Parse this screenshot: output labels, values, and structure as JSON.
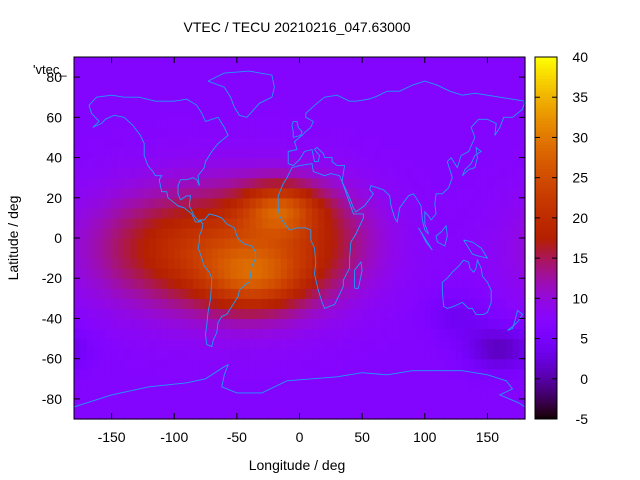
{
  "chart_data": {
    "type": "heatmap",
    "title": "VTEC / TECU 20210216_047.63000",
    "xlabel": "Longitude / deg",
    "ylabel": "Latitude / deg",
    "legend_label": "'vtec_",
    "xlim": [
      -180,
      180
    ],
    "ylim": [
      -90,
      90
    ],
    "x_ticks": [
      -150,
      -100,
      -50,
      0,
      50,
      100,
      150
    ],
    "y_ticks": [
      -80,
      -60,
      -40,
      -20,
      0,
      20,
      40,
      60,
      80
    ],
    "colorbar": {
      "range": [
        -5,
        40
      ],
      "ticks": [
        -5,
        0,
        5,
        10,
        15,
        20,
        25,
        30,
        35,
        40
      ],
      "palette": "gnuplot-black-purple-red-orange-yellow"
    },
    "background_value": 7,
    "features": [
      {
        "name": "equatorial-anomaly-west",
        "lon": -45,
        "lat": -5,
        "amplitude": 13,
        "sigma_lon": 55,
        "sigma_lat": 22
      },
      {
        "name": "south-america-crest",
        "lon": -35,
        "lat": -20,
        "amplitude": 10,
        "sigma_lon": 30,
        "sigma_lat": 12
      },
      {
        "name": "atlantic-crest",
        "lon": -15,
        "lat": 15,
        "amplitude": 12,
        "sigma_lon": 22,
        "sigma_lat": 9
      },
      {
        "name": "pacific-tail",
        "lon": -120,
        "lat": -5,
        "amplitude": 6,
        "sigma_lon": 45,
        "sigma_lat": 20
      },
      {
        "name": "africa-tail",
        "lon": 25,
        "lat": 0,
        "amplitude": 4,
        "sigma_lon": 30,
        "sigma_lat": 18
      },
      {
        "name": "southern-pacific-low",
        "lon": 160,
        "lat": -55,
        "amplitude": -6,
        "sigma_lon": 20,
        "sigma_lat": 8
      },
      {
        "name": "australia-low",
        "lon": 125,
        "lat": -38,
        "amplitude": -3,
        "sigma_lon": 18,
        "sigma_lat": 8
      }
    ],
    "coastline_color": "#1e9bff",
    "grid": false
  }
}
